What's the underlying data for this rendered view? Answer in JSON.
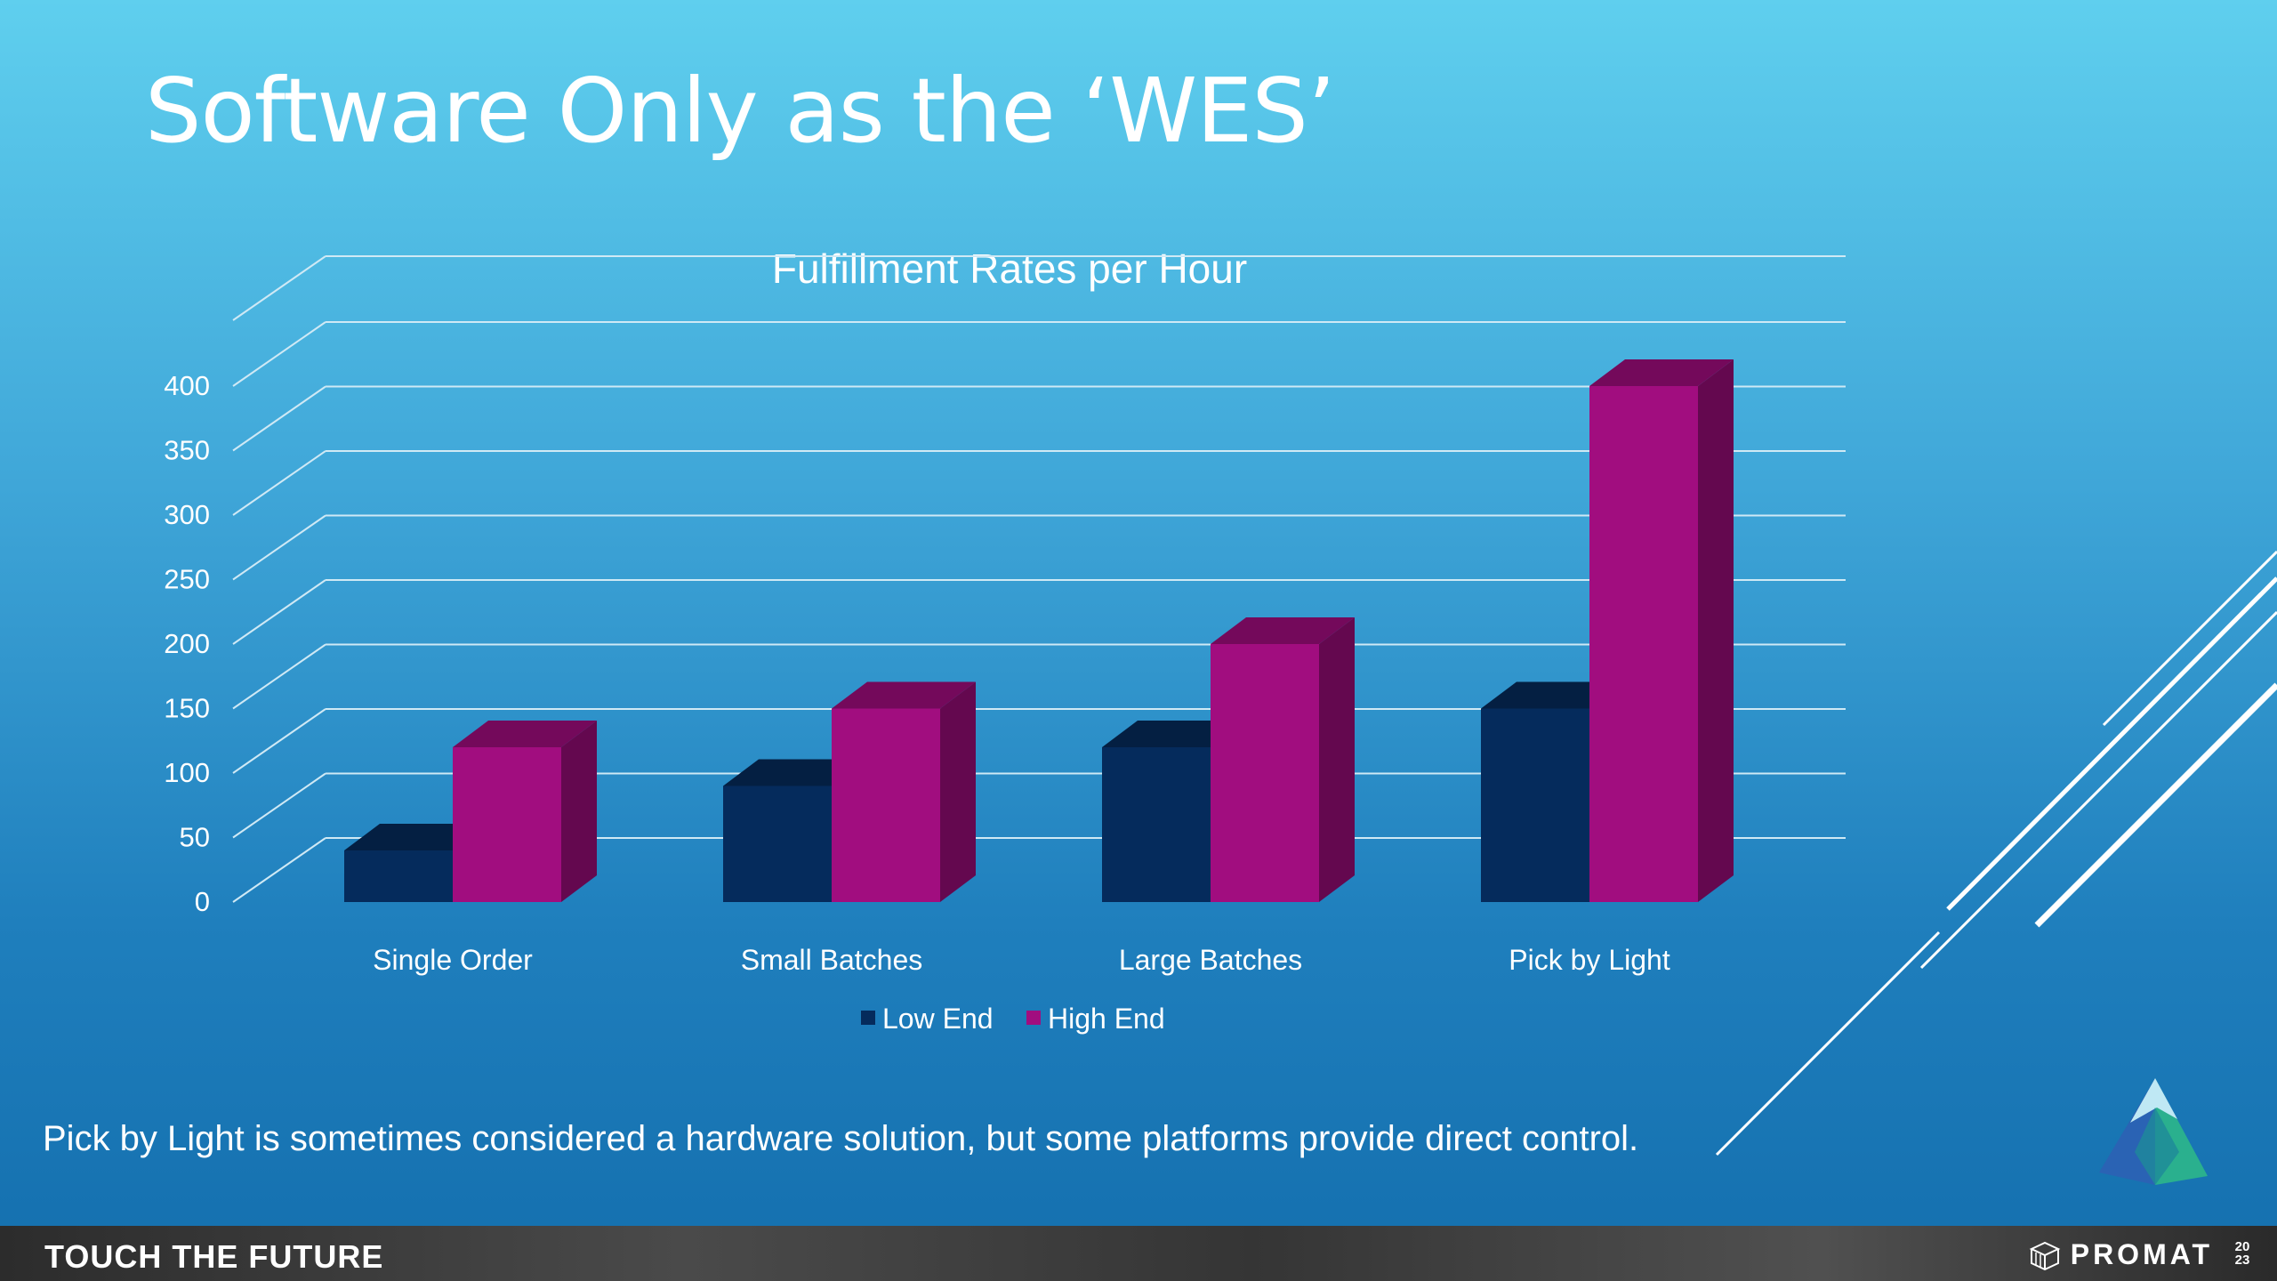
{
  "slide": {
    "title": "Software Only as the ‘WES’",
    "caption": "Pick by Light is sometimes considered a hardware solution, but some platforms provide direct control."
  },
  "footer": {
    "tagline": "TOUCH THE FUTURE",
    "brand": "PROMAT",
    "year": "2023"
  },
  "colors": {
    "low_end": "#052b5c",
    "high_end": "#a10d7f",
    "background_top": "#5fcfee",
    "background_bottom": "#146fae"
  },
  "icons": [
    "promat-logo-icon",
    "mountain-logo-icon"
  ],
  "chart_data": {
    "type": "bar",
    "title": "Fulfillment Rates per Hour",
    "categories": [
      "Single Order",
      "Small Batches",
      "Large Batches",
      "Pick by Light"
    ],
    "series": [
      {
        "name": "Low End",
        "values": [
          40,
          90,
          120,
          150
        ]
      },
      {
        "name": "High End",
        "values": [
          120,
          150,
          200,
          400
        ]
      }
    ],
    "ylim": [
      0,
      400
    ],
    "yticks": [
      "0",
      "50",
      "100",
      "150",
      "200",
      "250",
      "300",
      "350",
      "400"
    ],
    "grid": true,
    "legend": "bottom",
    "style": "3d-clustered-column"
  }
}
